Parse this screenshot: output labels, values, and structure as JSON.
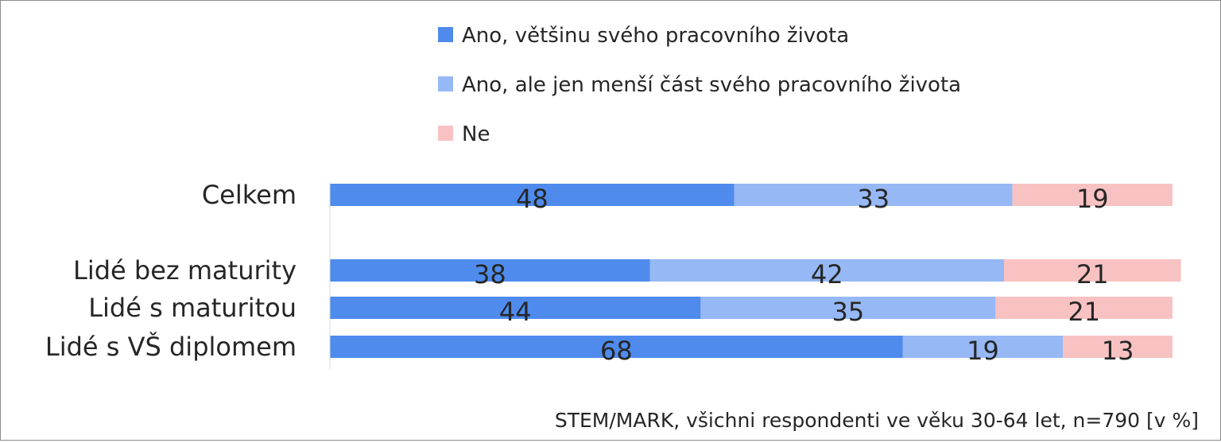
{
  "chart_data": {
    "type": "bar",
    "orientation": "horizontal",
    "stacked": true,
    "categories": [
      "Celkem",
      "Lidé bez maturity",
      "Lidé s maturitou",
      "Lidé s VŠ diplomem"
    ],
    "series": [
      {
        "name": "Ano, většinu svého pracovního života",
        "color": "#4e8bed",
        "values": [
          48,
          38,
          44,
          68
        ]
      },
      {
        "name": "Ano, ale jen menší část svého pracovního života",
        "color": "#96b8f5",
        "values": [
          33,
          42,
          35,
          19
        ]
      },
      {
        "name": "Ne",
        "color": "#f8c2c2",
        "values": [
          19,
          21,
          21,
          13
        ]
      }
    ],
    "xlim": [
      0,
      100
    ],
    "legend_position": "top",
    "grid": false,
    "source_note": "STEM/MARK, všichni respondenti ve věku 30-64 let, n=790 [v %]"
  }
}
